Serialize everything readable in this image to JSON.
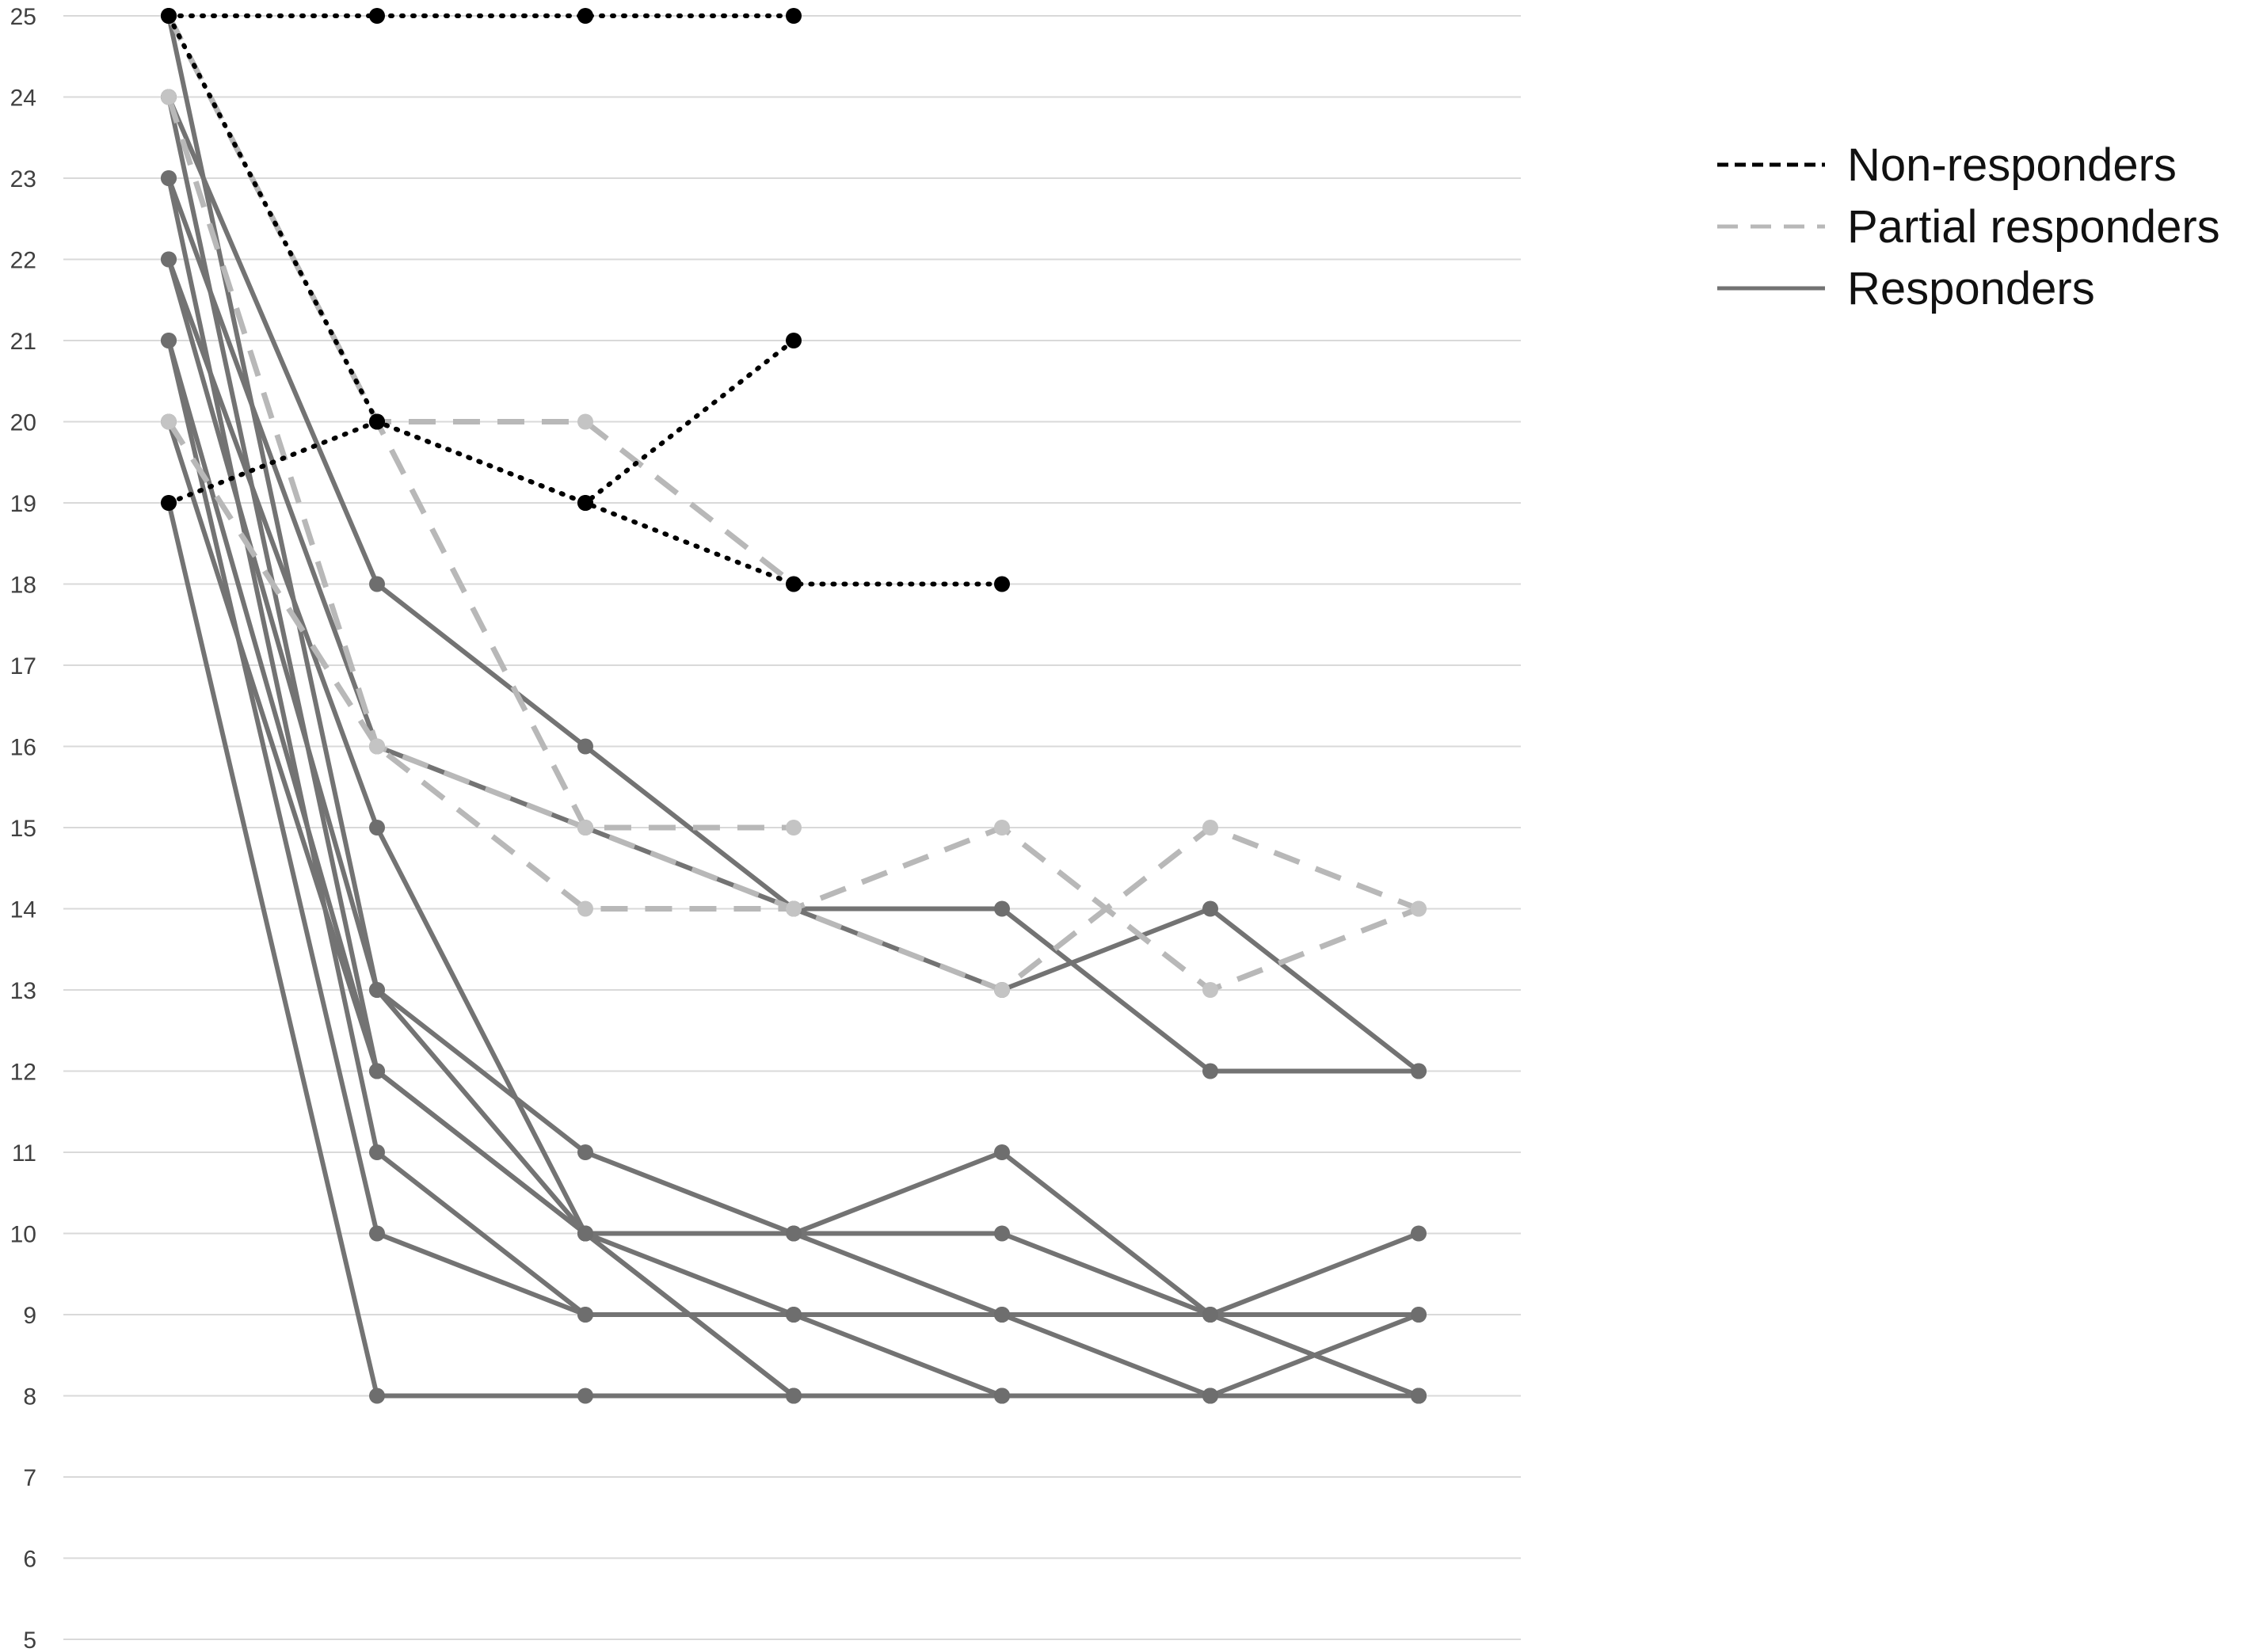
{
  "chart_data": {
    "type": "line",
    "title": "",
    "xlabel": "",
    "ylabel": "",
    "ylim": [
      5,
      25
    ],
    "y_ticks": [
      "5",
      "6",
      "7",
      "8",
      "9",
      "10",
      "11",
      "12",
      "13",
      "14",
      "15",
      "16",
      "17",
      "18",
      "19",
      "20",
      "21",
      "22",
      "23",
      "24",
      "25"
    ],
    "x_count": 7,
    "grid": true,
    "legend_position": "top-right",
    "groups": [
      {
        "name": "Non-responders",
        "dash": "dotted",
        "color": "#000000"
      },
      {
        "name": "Partial responders",
        "dash": "dashed",
        "color": "#b3b3b3"
      },
      {
        "name": "Responders",
        "dash": "solid",
        "color": "#757575"
      }
    ],
    "series": [
      {
        "group": "Responders",
        "values": [
          24,
          18,
          16,
          14,
          14,
          12,
          12
        ]
      },
      {
        "group": "Responders",
        "values": [
          23,
          16,
          15,
          14,
          13,
          14,
          12
        ]
      },
      {
        "group": "Responders",
        "values": [
          22,
          15,
          10,
          10,
          11,
          9,
          8
        ]
      },
      {
        "group": "Responders",
        "values": [
          25,
          13,
          11,
          10,
          9,
          9,
          10
        ]
      },
      {
        "group": "Responders",
        "values": [
          21,
          12,
          10,
          9,
          9,
          8,
          9
        ]
      },
      {
        "group": "Responders",
        "values": [
          20,
          12,
          10,
          10,
          10,
          9,
          9
        ]
      },
      {
        "group": "Responders",
        "values": [
          23,
          11,
          9,
          9,
          9,
          9,
          8
        ]
      },
      {
        "group": "Responders",
        "values": [
          21,
          10,
          9,
          9,
          8,
          8,
          8
        ]
      },
      {
        "group": "Responders",
        "values": [
          24,
          12,
          10,
          8,
          8,
          8,
          8
        ]
      },
      {
        "group": "Responders",
        "values": [
          19,
          8,
          8,
          8,
          8,
          8,
          8
        ]
      },
      {
        "group": "Responders",
        "values": [
          22,
          13,
          10,
          8,
          8,
          8,
          8
        ]
      },
      {
        "group": "Partial responders",
        "values": [
          25,
          20,
          20,
          18
        ]
      },
      {
        "group": "Partial responders",
        "values": [
          25,
          20,
          15,
          15
        ]
      },
      {
        "group": "Partial responders",
        "values": [
          20,
          16,
          14,
          14,
          15,
          13,
          14
        ]
      },
      {
        "group": "Partial responders",
        "values": [
          24,
          16,
          15,
          14,
          13,
          15,
          14
        ]
      },
      {
        "group": "Non-responders",
        "values": [
          25,
          25,
          25,
          25
        ]
      },
      {
        "group": "Non-responders",
        "values": [
          19,
          20,
          19,
          21
        ]
      },
      {
        "group": "Non-responders",
        "values": [
          25,
          20,
          19,
          18,
          18
        ]
      }
    ]
  }
}
